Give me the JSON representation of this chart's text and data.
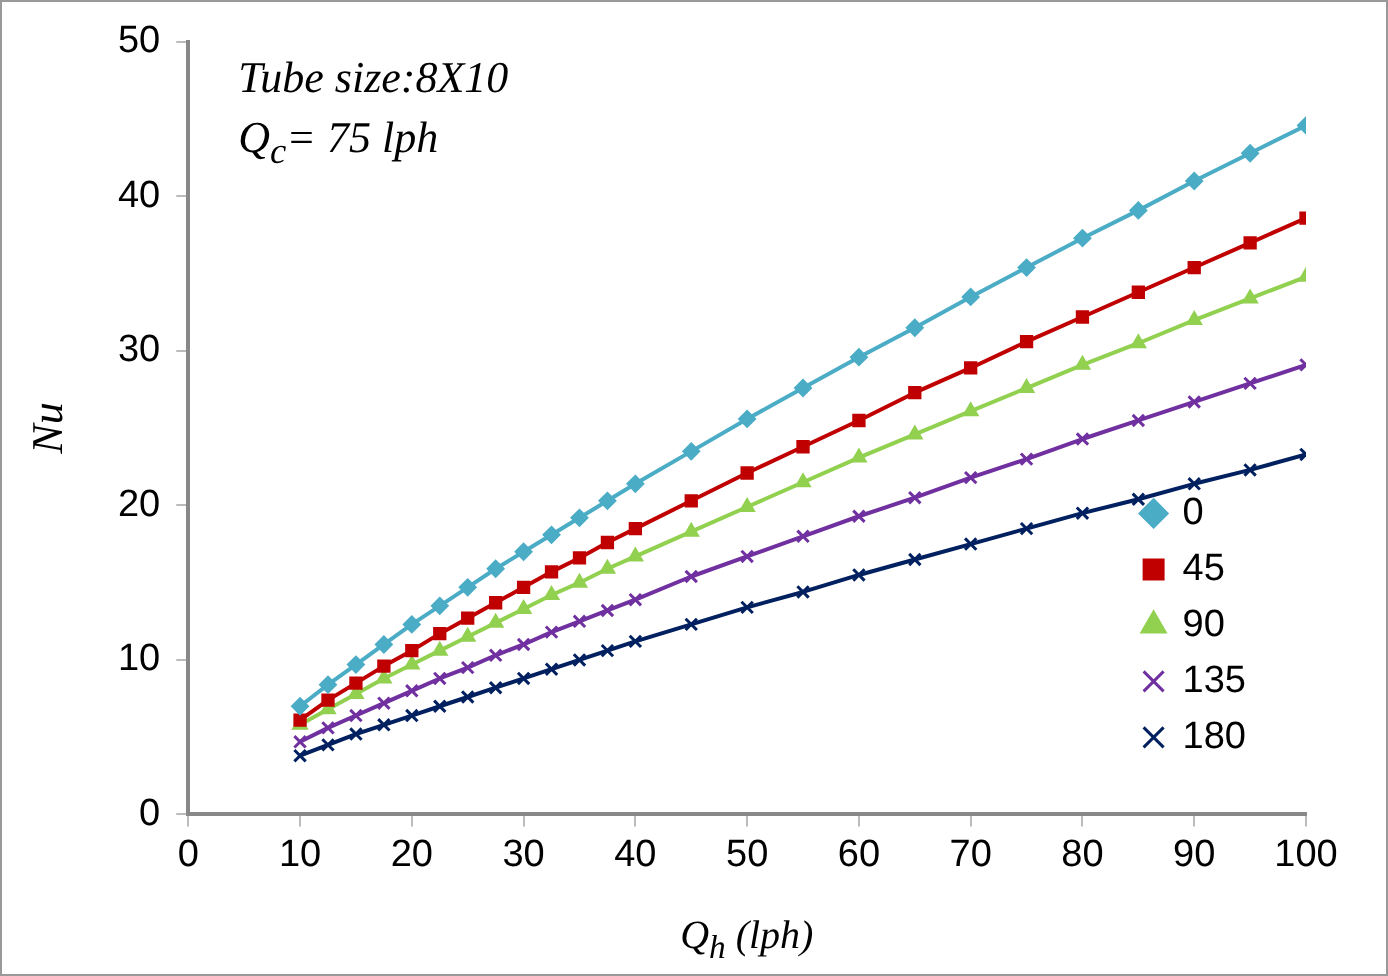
{
  "chart_data": {
    "type": "line",
    "xlabel": "Q$_{h}$  (lph)",
    "ylabel": "Nu",
    "annotations": [
      "Tube size:8X10",
      "Q$_{c}$= 75 lph"
    ],
    "x": [
      10,
      12.5,
      15,
      17.5,
      20,
      22.5,
      25,
      27.5,
      30,
      32.5,
      35,
      37.5,
      40,
      45,
      50,
      55,
      60,
      65,
      70,
      75,
      80,
      85,
      90,
      95,
      100
    ],
    "xlim": [
      0,
      100
    ],
    "xticks": [
      0,
      10,
      20,
      30,
      40,
      50,
      60,
      70,
      80,
      90,
      100
    ],
    "ylim": [
      0,
      50
    ],
    "yticks": [
      0,
      10,
      20,
      30,
      40,
      50
    ],
    "grid": false,
    "legend": "bottom right",
    "line_style": "solid",
    "series": [
      {
        "name": "0",
        "color": "#4bacc6",
        "marker": "diamond",
        "values": [
          7.0,
          8.4,
          9.7,
          11.0,
          12.3,
          13.5,
          14.7,
          15.9,
          17.0,
          18.1,
          19.2,
          20.3,
          21.4,
          23.5,
          25.6,
          27.6,
          29.6,
          31.5,
          33.5,
          35.4,
          37.3,
          39.1,
          41.0,
          42.8,
          44.6
        ]
      },
      {
        "name": "45",
        "color": "#c00000",
        "marker": "square",
        "values": [
          6.1,
          7.4,
          8.5,
          9.6,
          10.6,
          11.7,
          12.7,
          13.7,
          14.7,
          15.7,
          16.6,
          17.6,
          18.5,
          20.3,
          22.1,
          23.8,
          25.5,
          27.3,
          28.9,
          30.6,
          32.2,
          33.8,
          35.4,
          37.0,
          38.6
        ]
      },
      {
        "name": "90",
        "color": "#92d050",
        "marker": "triangle",
        "values": [
          5.8,
          6.8,
          7.8,
          8.8,
          9.7,
          10.6,
          11.5,
          12.4,
          13.3,
          14.2,
          15.0,
          15.9,
          16.7,
          18.3,
          19.9,
          21.5,
          23.1,
          24.6,
          26.1,
          27.6,
          29.1,
          30.5,
          32.0,
          33.4,
          34.8
        ]
      },
      {
        "name": "135",
        "color": "#7030a0",
        "marker": "cross",
        "values": [
          4.7,
          5.6,
          6.4,
          7.2,
          8.0,
          8.8,
          9.5,
          10.3,
          11.0,
          11.8,
          12.5,
          13.2,
          13.9,
          15.4,
          16.7,
          18.0,
          19.3,
          20.5,
          21.8,
          23.0,
          24.3,
          25.5,
          26.7,
          27.9,
          29.1
        ]
      },
      {
        "name": "180",
        "color": "#002060",
        "marker": "cross",
        "values": [
          3.8,
          4.5,
          5.2,
          5.8,
          6.4,
          7.0,
          7.6,
          8.2,
          8.8,
          9.4,
          10.0,
          10.6,
          11.2,
          12.3,
          13.4,
          14.4,
          15.5,
          16.5,
          17.5,
          18.5,
          19.5,
          20.4,
          21.4,
          22.3,
          23.3
        ]
      }
    ]
  }
}
